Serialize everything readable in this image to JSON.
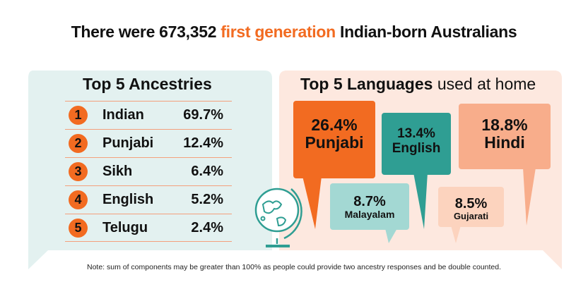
{
  "title": {
    "before": "There were 673,352 ",
    "highlight": "first generation",
    "after": " Indian-born Australians"
  },
  "colors": {
    "orange": "#f26b21",
    "teal": "#2f9e93",
    "light_teal": "#a3d8d3",
    "peach": "#f8ad8b",
    "light_peach": "#fcd3be",
    "left_panel": "#e3f1f0",
    "right_panel": "#fde8df"
  },
  "ancestries": {
    "title": "Top 5 Ancestries",
    "items": [
      {
        "rank": "1",
        "name": "Indian",
        "percent": "69.7%"
      },
      {
        "rank": "2",
        "name": "Punjabi",
        "percent": "12.4%"
      },
      {
        "rank": "3",
        "name": "Sikh",
        "percent": "6.4%"
      },
      {
        "rank": "4",
        "name": "English",
        "percent": "5.2%"
      },
      {
        "rank": "5",
        "name": "Telugu",
        "percent": "2.4%"
      }
    ]
  },
  "languages": {
    "title_bold": "Top 5 Languages",
    "title_rest": " used at home",
    "items": [
      {
        "percent": "26.4%",
        "name": "Punjabi"
      },
      {
        "percent": "13.4%",
        "name": "English"
      },
      {
        "percent": "18.8%",
        "name": "Hindi"
      },
      {
        "percent": "8.7%",
        "name": "Malayalam"
      },
      {
        "percent": "8.5%",
        "name": "Gujarati"
      }
    ],
    "icon": "globe-icon"
  },
  "note": "Note: sum of components may be greater than 100% as people could provide two ancestry responses and be double counted."
}
